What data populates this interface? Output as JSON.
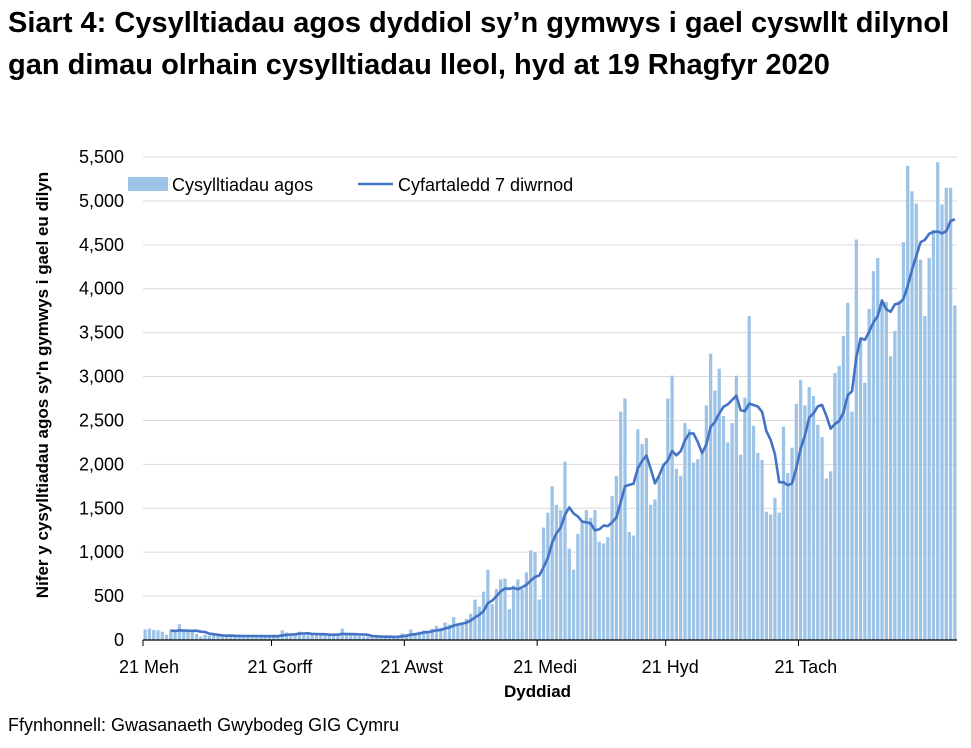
{
  "title": "Siart 4: Cysylltiadau agos dyddiol sy’n gymwys i gael cyswllt dilynol gan dimau olrhain cysylltiadau lleol, hyd at 19 Rhagfyr 2020",
  "source": "Ffynhonnell: Gwasanaeth Gwybodeg GIG Cymru",
  "colors": {
    "bars": "#9dc3e6",
    "line": "#4472c4",
    "grid": "#d9d9d9",
    "axis": "#000000"
  },
  "chart_data": {
    "type": "bar",
    "title": "Siart 4: Cysylltiadau agos dyddiol sy’n gymwys i gael cyswllt dilynol gan dimau olrhain cysylltiadau lleol, hyd at 19 Rhagfyr 2020",
    "xlabel": "Dyddiad",
    "ylabel": "Nifer y cysylltiadau agos sy'n gymwys i gael eu dilyn",
    "ylim": [
      0,
      5500
    ],
    "yticks": [
      0,
      500,
      1000,
      1500,
      2000,
      2500,
      3000,
      3500,
      4000,
      4500,
      5000,
      5500
    ],
    "ytick_labels": [
      "0",
      "500",
      "1,000",
      "1,500",
      "2,000",
      "2,500",
      "3,000",
      "3,500",
      "4,000",
      "4,500",
      "5,000",
      "5,500"
    ],
    "xtick_labels": [
      "21 Meh",
      "21 Gorff",
      "21 Awst",
      "21 Medi",
      "21 Hyd",
      "21 Tach"
    ],
    "xtick_day_index": [
      0,
      30,
      61,
      92,
      122,
      153
    ],
    "x_start": "21 Meh 2020",
    "x_end": "19 Rhagfyr 2020",
    "grid": true,
    "legend_position": "top-left inside",
    "series": [
      {
        "name": "Cysylltiadau agos",
        "type": "bar",
        "values": [
          120,
          130,
          115,
          110,
          95,
          60,
          120,
          90,
          180,
          100,
          95,
          90,
          70,
          40,
          60,
          50,
          55,
          50,
          45,
          40,
          50,
          45,
          40,
          45,
          50,
          45,
          45,
          40,
          40,
          40,
          50,
          40,
          110,
          85,
          70,
          60,
          95,
          60,
          55,
          65,
          75,
          55,
          60,
          55,
          55,
          60,
          130,
          55,
          55,
          50,
          45,
          40,
          40,
          35,
          30,
          30,
          40,
          45,
          30,
          45,
          75,
          70,
          120,
          80,
          95,
          110,
          80,
          130,
          160,
          140,
          200,
          175,
          260,
          170,
          200,
          240,
          300,
          460,
          380,
          550,
          800,
          410,
          580,
          690,
          700,
          350,
          620,
          690,
          580,
          770,
          1020,
          1000,
          460,
          1280,
          1450,
          1750,
          1540,
          1480,
          2030,
          1040,
          800,
          1210,
          1340,
          1480,
          1390,
          1480,
          1120,
          1100,
          1170,
          1640,
          1870,
          2600,
          2750,
          1230,
          1190,
          2400,
          2230,
          2300,
          1540,
          1600,
          1860,
          2010,
          2750,
          3010,
          1950,
          1870,
          2470,
          2400,
          2020,
          2060,
          2120,
          2670,
          3260,
          2840,
          3090,
          2550,
          2250,
          2470,
          3010,
          2110,
          2760,
          3690,
          2440,
          2130,
          2050,
          1460,
          1430,
          1620,
          1450,
          2430,
          1900,
          2190,
          2690,
          2960,
          2670,
          2880,
          2780,
          2450,
          2310,
          1840,
          1920,
          3040,
          3120,
          3460,
          3840,
          2600,
          4560,
          3420,
          2930,
          3770,
          4200,
          4350,
          3830,
          3850,
          3230,
          3520,
          3860,
          4530,
          5400,
          5110,
          4970,
          4330,
          3690,
          4350,
          4670,
          5440,
          4960,
          5150,
          5150,
          3810
        ]
      },
      {
        "name": "Cyfartaledd 7 diwrnod",
        "type": "line",
        "start_index": 6,
        "values": "7-day rolling mean of daily close contacts (computed)"
      }
    ]
  },
  "legend": {
    "bars_label": "Cysylltiadau agos",
    "line_label": "Cyfartaledd 7 diwrnod"
  }
}
